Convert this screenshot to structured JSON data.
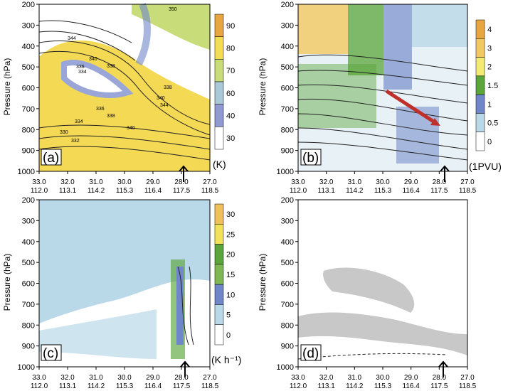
{
  "figure": {
    "y_axis_label": "Pressure (hPa)",
    "y_ticks": [
      "200",
      "300",
      "400",
      "500",
      "600",
      "700",
      "800",
      "900",
      "1000"
    ],
    "x_ticks": [
      {
        "lat": "33.0",
        "lon": "112.0"
      },
      {
        "lat": "32.0",
        "lon": "113.1"
      },
      {
        "lat": "31.0",
        "lon": "114.2"
      },
      {
        "lat": "30.0",
        "lon": "115.3"
      },
      {
        "lat": "29.0",
        "lon": "116.4"
      },
      {
        "lat": "28.0",
        "lon": "117.5"
      },
      {
        "lat": "27.0",
        "lon": "118.5"
      }
    ],
    "colors": {
      "yellow": "#f2dd54",
      "green_light": "#b8d86a",
      "green": "#5aa63a",
      "blue": "#6f86c8",
      "light_blue": "#b9d8e8",
      "orange": "#e8a640",
      "gray": "#c8c8c8",
      "red_arrow": "#c0302a"
    }
  },
  "panels": [
    {
      "id": "a",
      "label": "(a)",
      "unit": "(K)",
      "colorbar": [
        "90",
        "80",
        "70",
        "60",
        "40",
        "30"
      ],
      "colorbar_colors": [
        "#e8a640",
        "#f2dd54",
        "#c9dc7a",
        "#a9c9d9",
        "#8f9ad3",
        "#ffffff"
      ],
      "contour_labels": [
        "350",
        "344",
        "340",
        "338",
        "336",
        "334",
        "338",
        "340",
        "344",
        "330",
        "332",
        "334",
        "336",
        "338",
        "340"
      ]
    },
    {
      "id": "b",
      "label": "(b)",
      "unit": "(1PVU)",
      "colorbar": [
        "4",
        "3",
        "2",
        "1.5",
        "1",
        "0.5",
        "0"
      ],
      "colorbar_colors": [
        "#e8a640",
        "#f2c860",
        "#f2ea72",
        "#5aa63a",
        "#6f86c8",
        "#b9d8e8",
        "#ffffff"
      ]
    },
    {
      "id": "c",
      "label": "(c)",
      "unit": "(K h⁻¹)",
      "colorbar": [
        "30",
        "25",
        "20",
        "15",
        "10",
        "5",
        "0"
      ],
      "colorbar_colors": [
        "#f0c05a",
        "#f2e25a",
        "#5aa63a",
        "#7fb852",
        "#6f86c8",
        "#b9d8e8",
        "#ffffff"
      ]
    },
    {
      "id": "d",
      "label": "(d)"
    }
  ]
}
